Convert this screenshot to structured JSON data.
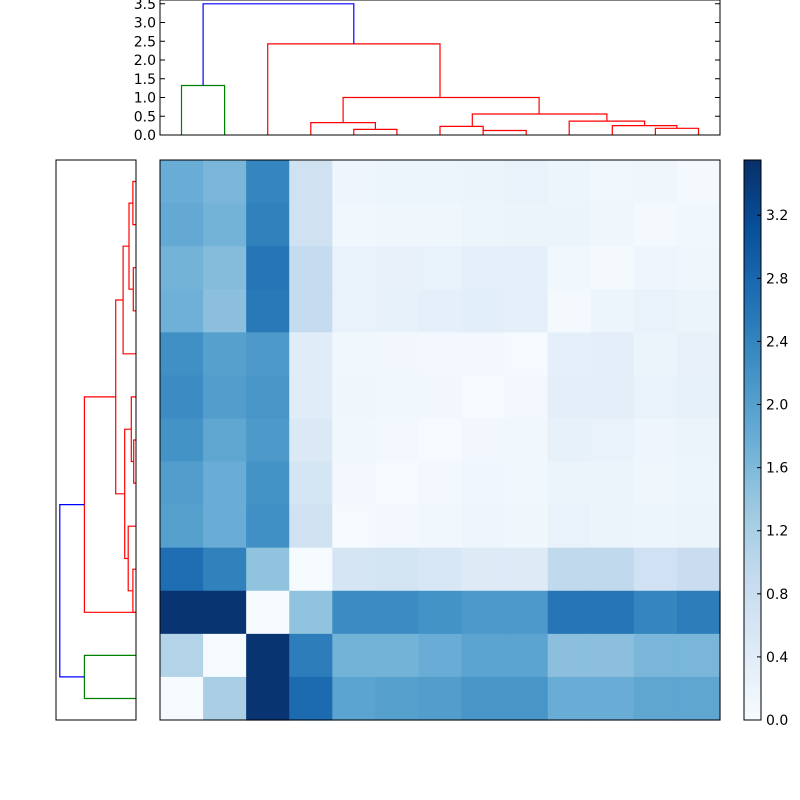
{
  "chart_data": [
    {
      "type": "dendrogram",
      "orientation": "top",
      "ylim": [
        0,
        3.6
      ],
      "yticks": [
        "0.0",
        "0.5",
        "1.0",
        "1.5",
        "2.0",
        "2.5",
        "3.0",
        "3.5"
      ],
      "ytick_values": [
        0,
        0.5,
        1.0,
        1.5,
        2.0,
        2.5,
        3.0,
        3.5
      ],
      "leaf_count": 13,
      "colors": {
        "green": "#008000",
        "red": "#ff0000",
        "blue": "#0000ff"
      },
      "links": [
        {
          "x": [
            0.5,
            0.5,
            1.5,
            1.5
          ],
          "y": [
            0,
            1.32,
            1.32,
            0
          ],
          "color": "green"
        },
        {
          "x": [
            4.5,
            4.5,
            5.5,
            5.5
          ],
          "y": [
            0,
            0.15,
            0.15,
            0
          ],
          "color": "red"
        },
        {
          "x": [
            3.5,
            3.5,
            5.0,
            5.0
          ],
          "y": [
            0,
            0.33,
            0.33,
            0.15
          ],
          "color": "red"
        },
        {
          "x": [
            6.5,
            6.5,
            7.5,
            7.5
          ],
          "y": [
            0,
            0.23,
            0.23,
            0
          ],
          "color": "red"
        },
        {
          "x": [
            7.5,
            7.5,
            8.5,
            8.5
          ],
          "y": [
            0.2,
            0.12,
            0.12,
            0
          ],
          "color": "red"
        },
        {
          "x": [
            11.5,
            11.5,
            12.5,
            12.5
          ],
          "y": [
            0,
            0.18,
            0.18,
            0
          ],
          "color": "red"
        },
        {
          "x": [
            10.5,
            10.5,
            12.0,
            12.0
          ],
          "y": [
            0,
            0.25,
            0.25,
            0.18
          ],
          "color": "red"
        },
        {
          "x": [
            9.5,
            9.5,
            11.25,
            11.25
          ],
          "y": [
            0,
            0.37,
            0.37,
            0.25
          ],
          "color": "red"
        },
        {
          "x": [
            7.25,
            7.25,
            10.375,
            10.375
          ],
          "y": [
            0.23,
            0.56,
            0.56,
            0.37
          ],
          "color": "red"
        },
        {
          "x": [
            4.25,
            4.25,
            8.8,
            8.8
          ],
          "y": [
            0.33,
            1.0,
            1.0,
            0.56
          ],
          "color": "red"
        },
        {
          "x": [
            2.5,
            2.5,
            6.5,
            6.5
          ],
          "y": [
            0,
            2.43,
            2.43,
            1.0
          ],
          "color": "red"
        },
        {
          "x": [
            1.0,
            1.0,
            4.5,
            4.5
          ],
          "y": [
            1.32,
            3.5,
            3.5,
            2.43
          ],
          "color": "blue"
        }
      ]
    },
    {
      "type": "dendrogram",
      "orientation": "left",
      "leaf_count": 13,
      "colors": {
        "green": "#008000",
        "red": "#ff0000",
        "blue": "#0000ff"
      },
      "links": [
        {
          "x": [
            0.5,
            0.5,
            1.5,
            1.5
          ],
          "y": [
            0,
            1.32,
            1.32,
            0
          ],
          "color": "green"
        },
        {
          "x": [
            2.5,
            2.5,
            3.5,
            3.5
          ],
          "y": [
            0,
            0.08,
            0.08,
            0
          ],
          "color": "red"
        },
        {
          "x": [
            3.0,
            3.0,
            4.5,
            4.5
          ],
          "y": [
            0.08,
            0.2,
            0.2,
            0
          ],
          "color": "red"
        },
        {
          "x": [
            5.5,
            5.5,
            6.5,
            6.5
          ],
          "y": [
            0,
            0.06,
            0.06,
            0
          ],
          "color": "red"
        },
        {
          "x": [
            6.0,
            6.0,
            7.5,
            7.5
          ],
          "y": [
            0.06,
            0.12,
            0.12,
            0
          ],
          "color": "red"
        },
        {
          "x": [
            3.75,
            3.75,
            6.75,
            6.75
          ],
          "y": [
            0.2,
            0.29,
            0.29,
            0.12
          ],
          "color": "red"
        },
        {
          "x": [
            9.5,
            9.5,
            10.5,
            10.5
          ],
          "y": [
            0,
            0.07,
            0.07,
            0
          ],
          "color": "red"
        },
        {
          "x": [
            11.5,
            11.5,
            12.5,
            12.5
          ],
          "y": [
            0,
            0.08,
            0.08,
            0
          ],
          "color": "red"
        },
        {
          "x": [
            10.0,
            10.0,
            12.0,
            12.0
          ],
          "y": [
            0.07,
            0.18,
            0.18,
            0.08
          ],
          "color": "red"
        },
        {
          "x": [
            8.5,
            8.5,
            11.0,
            11.0
          ],
          "y": [
            0,
            0.33,
            0.33,
            0.18
          ],
          "color": "red"
        },
        {
          "x": [
            5.25,
            5.25,
            9.75,
            9.75
          ],
          "y": [
            0.29,
            0.52,
            0.52,
            0.33
          ],
          "color": "red"
        },
        {
          "x": [
            2.5,
            2.5,
            7.5,
            7.5
          ],
          "y": [
            0,
            1.32,
            1.32,
            0.52
          ],
          "color": "red"
        },
        {
          "x": [
            1.0,
            1.0,
            5.0,
            5.0
          ],
          "y": [
            1.32,
            1.95,
            1.95,
            1.32
          ],
          "color": "blue"
        }
      ]
    },
    {
      "type": "heatmap",
      "rows": 13,
      "cols": 13,
      "colormap": "Blues",
      "vmin": 0,
      "vmax": 3.55,
      "values": [
        [
          1.8,
          1.65,
          2.4,
          0.7,
          0.16,
          0.18,
          0.18,
          0.22,
          0.24,
          0.18,
          0.12,
          0.14,
          0.05
        ],
        [
          1.85,
          1.7,
          2.45,
          0.7,
          0.12,
          0.14,
          0.14,
          0.17,
          0.2,
          0.22,
          0.15,
          0.05,
          0.12
        ],
        [
          1.7,
          1.55,
          2.6,
          0.9,
          0.24,
          0.27,
          0.26,
          0.33,
          0.34,
          0.12,
          0.05,
          0.16,
          0.14
        ],
        [
          1.75,
          1.5,
          2.55,
          0.9,
          0.25,
          0.28,
          0.33,
          0.37,
          0.33,
          0.05,
          0.17,
          0.24,
          0.22
        ],
        [
          2.25,
          2.0,
          2.1,
          0.4,
          0.12,
          0.1,
          0.09,
          0.07,
          0.04,
          0.32,
          0.35,
          0.22,
          0.27
        ],
        [
          2.3,
          2.05,
          2.15,
          0.4,
          0.14,
          0.12,
          0.1,
          0.04,
          0.08,
          0.36,
          0.36,
          0.24,
          0.29
        ],
        [
          2.2,
          1.9,
          2.1,
          0.5,
          0.12,
          0.07,
          0.04,
          0.1,
          0.12,
          0.28,
          0.24,
          0.16,
          0.22
        ],
        [
          2.05,
          1.8,
          2.2,
          0.62,
          0.07,
          0.04,
          0.09,
          0.13,
          0.12,
          0.22,
          0.2,
          0.15,
          0.17
        ],
        [
          2.0,
          1.8,
          2.25,
          0.7,
          0.04,
          0.08,
          0.12,
          0.16,
          0.14,
          0.24,
          0.22,
          0.18,
          0.2
        ],
        [
          2.7,
          2.45,
          1.45,
          0.03,
          0.6,
          0.64,
          0.55,
          0.44,
          0.45,
          0.95,
          0.95,
          0.72,
          0.82
        ],
        [
          3.5,
          3.5,
          0.0,
          1.45,
          2.3,
          2.3,
          2.2,
          2.1,
          2.1,
          2.6,
          2.6,
          2.4,
          2.5
        ],
        [
          1.1,
          0.04,
          3.5,
          2.5,
          1.7,
          1.7,
          1.8,
          1.95,
          1.95,
          1.5,
          1.5,
          1.65,
          1.65
        ],
        [
          0.04,
          1.2,
          3.5,
          2.75,
          1.95,
          2.0,
          2.05,
          2.15,
          2.15,
          1.8,
          1.8,
          1.9,
          1.9
        ]
      ]
    },
    {
      "type": "colorbar",
      "colormap": "Blues",
      "range": [
        0,
        3.55
      ],
      "ticks": [
        "0.0",
        "0.4",
        "0.8",
        "1.2",
        "1.6",
        "2.0",
        "2.4",
        "2.8",
        "3.2"
      ],
      "tick_values": [
        0.0,
        0.4,
        0.8,
        1.2,
        1.6,
        2.0,
        2.4,
        2.8,
        3.2
      ]
    }
  ]
}
